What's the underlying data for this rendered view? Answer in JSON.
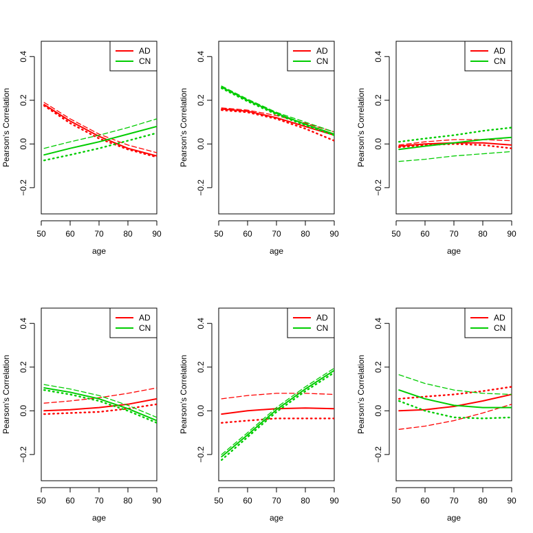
{
  "colors": {
    "AD": "#ff0000",
    "CN": "#00cc00",
    "axis": "#000000"
  },
  "chart_data": [
    {
      "type": "line",
      "xlabel": "age",
      "ylabel": "Pearson's Correlation",
      "xlim": [
        50,
        90
      ],
      "ylim": [
        -0.32,
        0.47
      ],
      "xticks": [
        "50",
        "60",
        "70",
        "80",
        "90"
      ],
      "yticks": [
        "−0.2",
        "0.0",
        "0.2",
        "0.4"
      ],
      "legend": {
        "position": "top-right",
        "entries": [
          "AD",
          "CN"
        ]
      },
      "series": [
        {
          "name": "AD",
          "style": "solid",
          "x": [
            51,
            60,
            70,
            80,
            90
          ],
          "y": [
            0.18,
            0.105,
            0.035,
            -0.02,
            -0.055
          ]
        },
        {
          "name": "AD",
          "style": "dashed",
          "x": [
            51,
            60,
            70,
            80,
            90
          ],
          "y": [
            0.19,
            0.115,
            0.045,
            -0.005,
            -0.04
          ]
        },
        {
          "name": "AD",
          "style": "dotted",
          "x": [
            51,
            60,
            70,
            80,
            90
          ],
          "y": [
            0.175,
            0.095,
            0.025,
            -0.025,
            -0.06
          ]
        },
        {
          "name": "CN",
          "style": "solid",
          "x": [
            51,
            60,
            70,
            80,
            90
          ],
          "y": [
            -0.05,
            -0.02,
            0.01,
            0.045,
            0.08
          ]
        },
        {
          "name": "CN",
          "style": "dashed",
          "x": [
            51,
            60,
            70,
            80,
            90
          ],
          "y": [
            -0.02,
            0.01,
            0.04,
            0.075,
            0.115
          ]
        },
        {
          "name": "CN",
          "style": "dotted",
          "x": [
            51,
            60,
            70,
            80,
            90
          ],
          "y": [
            -0.075,
            -0.05,
            -0.02,
            0.015,
            0.05
          ]
        }
      ]
    },
    {
      "type": "line",
      "xlabel": "age",
      "ylabel": "Pearson's Correlation",
      "xlim": [
        50,
        90
      ],
      "ylim": [
        -0.32,
        0.47
      ],
      "xticks": [
        "50",
        "60",
        "70",
        "80",
        "90"
      ],
      "yticks": [
        "−0.2",
        "0.0",
        "0.2",
        "0.4"
      ],
      "legend": {
        "position": "top-right",
        "entries": [
          "AD",
          "CN"
        ]
      },
      "series": [
        {
          "name": "AD",
          "style": "solid",
          "x": [
            51,
            60,
            70,
            80,
            90
          ],
          "y": [
            0.16,
            0.15,
            0.12,
            0.08,
            0.04
          ]
        },
        {
          "name": "AD",
          "style": "dashed",
          "x": [
            51,
            60,
            70,
            80,
            90
          ],
          "y": [
            0.165,
            0.155,
            0.13,
            0.095,
            0.055
          ]
        },
        {
          "name": "AD",
          "style": "dotted",
          "x": [
            51,
            60,
            70,
            80,
            90
          ],
          "y": [
            0.155,
            0.145,
            0.115,
            0.07,
            0.015
          ]
        },
        {
          "name": "CN",
          "style": "solid",
          "x": [
            51,
            60,
            70,
            80,
            90
          ],
          "y": [
            0.26,
            0.2,
            0.14,
            0.09,
            0.045
          ]
        },
        {
          "name": "CN",
          "style": "dashed",
          "x": [
            51,
            60,
            70,
            80,
            90
          ],
          "y": [
            0.265,
            0.205,
            0.145,
            0.1,
            0.055
          ]
        },
        {
          "name": "CN",
          "style": "dotted",
          "x": [
            51,
            60,
            70,
            80,
            90
          ],
          "y": [
            0.255,
            0.195,
            0.135,
            0.085,
            0.04
          ]
        }
      ]
    },
    {
      "type": "line",
      "xlabel": "age",
      "ylabel": "Pearson's Correlation",
      "xlim": [
        50,
        90
      ],
      "ylim": [
        -0.32,
        0.47
      ],
      "xticks": [
        "50",
        "60",
        "70",
        "80",
        "90"
      ],
      "yticks": [
        "−0.2",
        "0.0",
        "0.2",
        "0.4"
      ],
      "legend": {
        "position": "top-right",
        "entries": [
          "AD",
          "CN"
        ]
      },
      "series": [
        {
          "name": "AD",
          "style": "solid",
          "x": [
            51,
            60,
            70,
            80,
            90
          ],
          "y": [
            -0.01,
            0.0,
            0.005,
            0.005,
            -0.005
          ]
        },
        {
          "name": "AD",
          "style": "dashed",
          "x": [
            51,
            60,
            70,
            80,
            90
          ],
          "y": [
            -0.005,
            0.01,
            0.02,
            0.02,
            0.015
          ]
        },
        {
          "name": "AD",
          "style": "dotted",
          "x": [
            51,
            60,
            70,
            80,
            90
          ],
          "y": [
            -0.015,
            -0.005,
            0.0,
            -0.005,
            -0.02
          ]
        },
        {
          "name": "CN",
          "style": "solid",
          "x": [
            51,
            60,
            70,
            80,
            90
          ],
          "y": [
            -0.025,
            -0.01,
            0.005,
            0.02,
            0.03
          ]
        },
        {
          "name": "CN",
          "style": "dashed",
          "x": [
            51,
            60,
            70,
            80,
            90
          ],
          "y": [
            -0.08,
            -0.07,
            -0.055,
            -0.045,
            -0.035
          ]
        },
        {
          "name": "CN",
          "style": "dotted",
          "x": [
            51,
            60,
            70,
            80,
            90
          ],
          "y": [
            0.01,
            0.025,
            0.04,
            0.06,
            0.075
          ]
        }
      ]
    },
    {
      "type": "line",
      "xlabel": "age",
      "ylabel": "Pearson's Correlation",
      "xlim": [
        50,
        90
      ],
      "ylim": [
        -0.32,
        0.47
      ],
      "xticks": [
        "50",
        "60",
        "70",
        "80",
        "90"
      ],
      "yticks": [
        "−0.2",
        "0.0",
        "0.2",
        "0.4"
      ],
      "legend": {
        "position": "top-right",
        "entries": [
          "AD",
          "CN"
        ]
      },
      "series": [
        {
          "name": "AD",
          "style": "solid",
          "x": [
            51,
            60,
            70,
            80,
            90
          ],
          "y": [
            0.0,
            0.005,
            0.015,
            0.03,
            0.055
          ]
        },
        {
          "name": "AD",
          "style": "dashed",
          "x": [
            51,
            60,
            70,
            80,
            90
          ],
          "y": [
            0.035,
            0.045,
            0.06,
            0.08,
            0.105
          ]
        },
        {
          "name": "AD",
          "style": "dotted",
          "x": [
            51,
            60,
            70,
            80,
            90
          ],
          "y": [
            -0.015,
            -0.01,
            -0.005,
            0.01,
            0.03
          ]
        },
        {
          "name": "CN",
          "style": "solid",
          "x": [
            51,
            60,
            70,
            80,
            90
          ],
          "y": [
            0.105,
            0.085,
            0.055,
            0.01,
            -0.045
          ]
        },
        {
          "name": "CN",
          "style": "dashed",
          "x": [
            51,
            60,
            70,
            80,
            90
          ],
          "y": [
            0.12,
            0.1,
            0.07,
            0.025,
            -0.03
          ]
        },
        {
          "name": "CN",
          "style": "dotted",
          "x": [
            51,
            60,
            70,
            80,
            90
          ],
          "y": [
            0.095,
            0.075,
            0.045,
            0.0,
            -0.055
          ]
        }
      ]
    },
    {
      "type": "line",
      "xlabel": "age",
      "ylabel": "Pearson's Correlation",
      "xlim": [
        50,
        90
      ],
      "ylim": [
        -0.32,
        0.47
      ],
      "xticks": [
        "50",
        "60",
        "70",
        "80",
        "90"
      ],
      "yticks": [
        "−0.2",
        "0.0",
        "0.2",
        "0.4"
      ],
      "legend": {
        "position": "top-right",
        "entries": [
          "AD",
          "CN"
        ]
      },
      "series": [
        {
          "name": "AD",
          "style": "solid",
          "x": [
            51,
            60,
            70,
            80,
            90
          ],
          "y": [
            -0.015,
            0.0,
            0.01,
            0.013,
            0.01
          ]
        },
        {
          "name": "AD",
          "style": "dashed",
          "x": [
            51,
            60,
            70,
            80,
            90
          ],
          "y": [
            0.055,
            0.07,
            0.08,
            0.08,
            0.075
          ]
        },
        {
          "name": "AD",
          "style": "dotted",
          "x": [
            51,
            60,
            70,
            80,
            90
          ],
          "y": [
            -0.055,
            -0.045,
            -0.035,
            -0.035,
            -0.035
          ]
        },
        {
          "name": "CN",
          "style": "solid",
          "x": [
            51,
            60,
            70,
            80,
            90
          ],
          "y": [
            -0.21,
            -0.11,
            0.005,
            0.1,
            0.185
          ]
        },
        {
          "name": "CN",
          "style": "dashed",
          "x": [
            51,
            60,
            70,
            80,
            90
          ],
          "y": [
            -0.2,
            -0.1,
            0.015,
            0.11,
            0.195
          ]
        },
        {
          "name": "CN",
          "style": "dotted",
          "x": [
            51,
            60,
            70,
            80,
            90
          ],
          "y": [
            -0.225,
            -0.12,
            -0.005,
            0.09,
            0.175
          ]
        }
      ]
    },
    {
      "type": "line",
      "xlabel": "age",
      "ylabel": "Pearson's Correlation",
      "xlim": [
        50,
        90
      ],
      "ylim": [
        -0.32,
        0.47
      ],
      "xticks": [
        "50",
        "60",
        "70",
        "80",
        "90"
      ],
      "yticks": [
        "−0.2",
        "0.0",
        "0.2",
        "0.4"
      ],
      "legend": {
        "position": "top-right",
        "entries": [
          "AD",
          "CN"
        ]
      },
      "series": [
        {
          "name": "AD",
          "style": "solid",
          "x": [
            51,
            60,
            70,
            80,
            90
          ],
          "y": [
            0.0,
            0.005,
            0.02,
            0.045,
            0.075
          ]
        },
        {
          "name": "AD",
          "style": "dashed",
          "x": [
            51,
            60,
            70,
            80,
            90
          ],
          "y": [
            -0.085,
            -0.07,
            -0.045,
            -0.01,
            0.03
          ]
        },
        {
          "name": "AD",
          "style": "dotted",
          "x": [
            51,
            60,
            70,
            80,
            90
          ],
          "y": [
            0.055,
            0.065,
            0.075,
            0.09,
            0.11
          ]
        },
        {
          "name": "CN",
          "style": "solid",
          "x": [
            51,
            60,
            70,
            80,
            90
          ],
          "y": [
            0.095,
            0.055,
            0.025,
            0.015,
            0.015
          ]
        },
        {
          "name": "CN",
          "style": "dashed",
          "x": [
            51,
            60,
            70,
            80,
            90
          ],
          "y": [
            0.165,
            0.125,
            0.095,
            0.08,
            0.075
          ]
        },
        {
          "name": "CN",
          "style": "dotted",
          "x": [
            51,
            60,
            70,
            80,
            90
          ],
          "y": [
            0.045,
            0.0,
            -0.03,
            -0.035,
            -0.03
          ]
        }
      ]
    }
  ]
}
